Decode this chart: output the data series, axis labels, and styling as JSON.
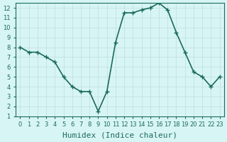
{
  "x": [
    0,
    1,
    2,
    3,
    4,
    5,
    6,
    7,
    8,
    9,
    10,
    11,
    12,
    13,
    14,
    15,
    16,
    17,
    18,
    19,
    20,
    21,
    22,
    23
  ],
  "y": [
    8,
    7.5,
    7.5,
    7,
    6.5,
    5,
    4,
    3.5,
    3.5,
    1.5,
    3.5,
    8.5,
    11.5,
    11.5,
    11.8,
    12,
    12.5,
    11.8,
    9.5,
    7.5,
    5.5,
    5,
    4,
    5
  ],
  "line_color": "#1a6b5a",
  "bg_color": "#d8f5f5",
  "grid_color": "#c0dede",
  "xlabel": "Humidex (Indice chaleur)",
  "xlim": [
    -0.5,
    23.5
  ],
  "ylim": [
    1,
    12.5
  ],
  "yticks": [
    1,
    2,
    3,
    4,
    5,
    6,
    7,
    8,
    9,
    10,
    11,
    12
  ],
  "xticks": [
    0,
    1,
    2,
    3,
    4,
    5,
    6,
    7,
    8,
    9,
    10,
    11,
    12,
    13,
    14,
    15,
    16,
    17,
    18,
    19,
    20,
    21,
    22,
    23
  ],
  "marker": "+",
  "marker_size": 4,
  "line_width": 1.2,
  "xlabel_fontsize": 8,
  "tick_fontsize": 6
}
